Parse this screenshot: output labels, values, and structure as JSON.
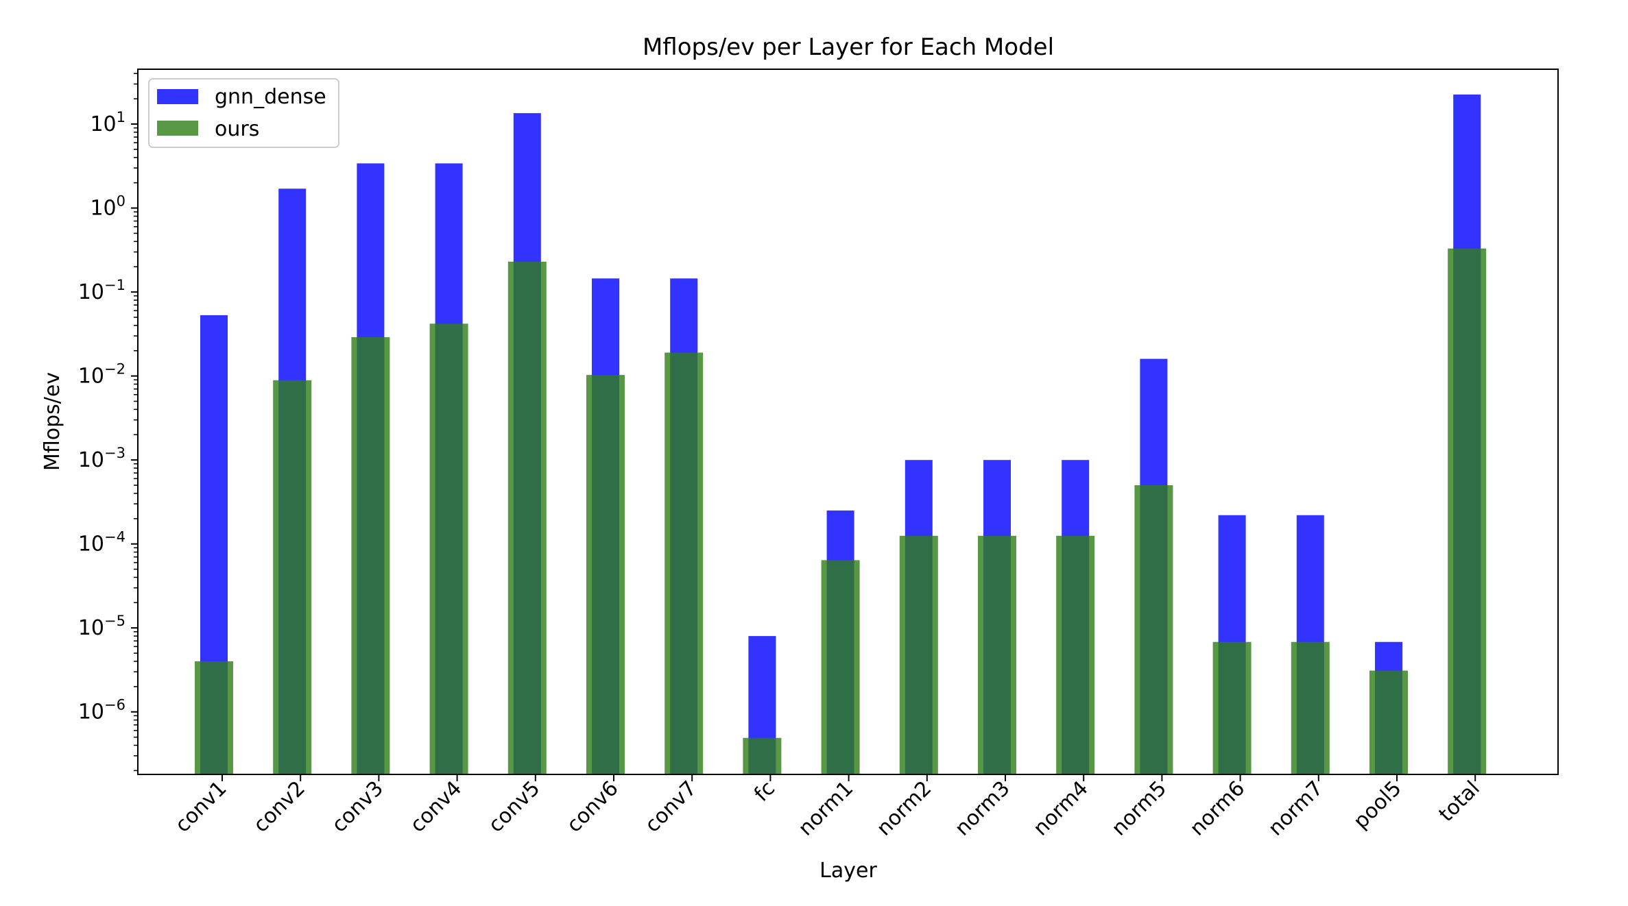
{
  "chart_data": {
    "type": "bar",
    "title": "Mflops/ev per Layer for Each Model",
    "xlabel": "Layer",
    "ylabel": "Mflops/ev",
    "yscale": "log",
    "ylim": [
      1.8e-07,
      45
    ],
    "legend_position": "top-left",
    "categories": [
      "conv1",
      "conv2",
      "conv3",
      "conv4",
      "conv5",
      "conv6",
      "conv7",
      "fc",
      "norm1",
      "norm2",
      "norm3",
      "norm4",
      "norm5",
      "norm6",
      "norm7",
      "pool5",
      "total"
    ],
    "series": [
      {
        "name": "gnn_dense",
        "color": "#0000ff",
        "opacity": 0.8,
        "values": [
          0.053,
          1.7,
          3.4,
          3.4,
          13.5,
          0.145,
          0.145,
          8e-06,
          0.00025,
          0.001,
          0.001,
          0.001,
          0.016,
          0.00022,
          0.00022,
          6.8e-06,
          22.5
        ]
      },
      {
        "name": "ours",
        "color": "#2e7d18",
        "opacity": 0.8,
        "values": [
          4e-06,
          0.0089,
          0.029,
          0.042,
          0.23,
          0.0103,
          0.019,
          4.9e-07,
          6.4e-05,
          0.000125,
          0.000125,
          0.000125,
          0.0005,
          6.8e-06,
          6.8e-06,
          3.1e-06,
          0.33
        ]
      }
    ],
    "ytick_labels": [
      {
        "base": "10",
        "exp": "1",
        "value": 10
      },
      {
        "base": "10",
        "exp": "0",
        "value": 1
      },
      {
        "base": "10",
        "exp": "−1",
        "value": 0.1
      },
      {
        "base": "10",
        "exp": "−2",
        "value": 0.01
      },
      {
        "base": "10",
        "exp": "−3",
        "value": 0.001
      },
      {
        "base": "10",
        "exp": "−4",
        "value": 0.0001
      },
      {
        "base": "10",
        "exp": "−5",
        "value": 1e-05
      },
      {
        "base": "10",
        "exp": "−6",
        "value": 1e-06
      }
    ]
  }
}
